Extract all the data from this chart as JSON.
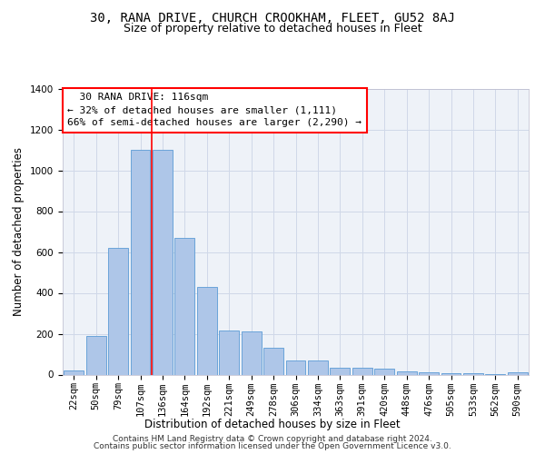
{
  "title": "30, RANA DRIVE, CHURCH CROOKHAM, FLEET, GU52 8AJ",
  "subtitle": "Size of property relative to detached houses in Fleet",
  "xlabel": "Distribution of detached houses by size in Fleet",
  "ylabel": "Number of detached properties",
  "footer_line1": "Contains HM Land Registry data © Crown copyright and database right 2024.",
  "footer_line2": "Contains public sector information licensed under the Open Government Licence v3.0.",
  "annotation_line1": "  30 RANA DRIVE: 116sqm",
  "annotation_line2": "← 32% of detached houses are smaller (1,111)",
  "annotation_line3": "66% of semi-detached houses are larger (2,290) →",
  "bar_labels": [
    "22sqm",
    "50sqm",
    "79sqm",
    "107sqm",
    "136sqm",
    "164sqm",
    "192sqm",
    "221sqm",
    "249sqm",
    "278sqm",
    "306sqm",
    "334sqm",
    "363sqm",
    "391sqm",
    "420sqm",
    "448sqm",
    "476sqm",
    "505sqm",
    "533sqm",
    "562sqm",
    "590sqm"
  ],
  "bar_values": [
    20,
    190,
    620,
    1100,
    1100,
    670,
    430,
    215,
    210,
    130,
    70,
    70,
    32,
    32,
    28,
    15,
    10,
    8,
    5,
    2,
    10
  ],
  "bar_color": "#aec6e8",
  "bar_edgecolor": "#5b9bd5",
  "vline_x": 3.5,
  "vline_color": "red",
  "ylim": [
    0,
    1400
  ],
  "yticks": [
    0,
    200,
    400,
    600,
    800,
    1000,
    1200,
    1400
  ],
  "grid_color": "#d0d8e8",
  "background_color": "#eef2f8",
  "title_fontsize": 10,
  "subtitle_fontsize": 9,
  "axis_label_fontsize": 8.5,
  "tick_fontsize": 7.5,
  "annotation_fontsize": 8,
  "footer_fontsize": 6.5
}
